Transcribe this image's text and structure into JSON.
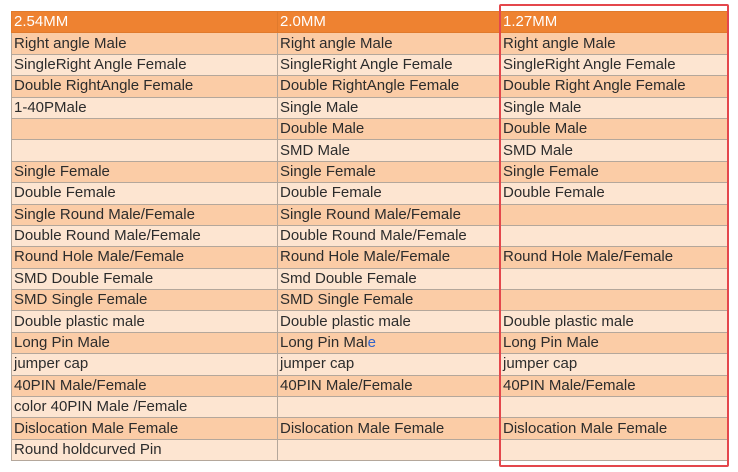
{
  "headers": [
    "2.54MM",
    "2.0MM",
    "1.27MM"
  ],
  "rows": [
    [
      "Right angle Male",
      "Right angle Male",
      "Right angle Male"
    ],
    [
      "SingleRight Angle Female",
      "SingleRight Angle Female",
      "SingleRight Angle Female"
    ],
    [
      "Double RightAngle Female",
      "Double RightAngle Female",
      "Double Right Angle Female"
    ],
    [
      "1-40PMale",
      "Single Male",
      "Single Male"
    ],
    [
      "",
      "Double Male",
      "Double Male"
    ],
    [
      "",
      "SMD Male",
      "SMD Male"
    ],
    [
      "Single Female",
      "Single Female",
      "Single Female"
    ],
    [
      "Double Female",
      "Double Female",
      "Double Female"
    ],
    [
      "Single Round Male/Female",
      "Single Round Male/Female",
      ""
    ],
    [
      "Double Round Male/Female",
      "Double Round Male/Female",
      ""
    ],
    [
      "Round Hole Male/Female",
      "Round Hole Male/Female",
      "Round Hole Male/Female"
    ],
    [
      "SMD Double Female",
      "Smd Double Female",
      ""
    ],
    [
      "SMD Single Female",
      "SMD Single Female",
      ""
    ],
    [
      "Double plastic male",
      "Double plastic male",
      "Double plastic male"
    ],
    [
      "Long Pin Male",
      "Long Pin Male",
      "Long Pin Male"
    ],
    [
      "jumper cap",
      "jumper cap",
      "jumper cap"
    ],
    [
      "40PIN Male/Female",
      "40PIN Male/Female",
      "40PIN Male/Female"
    ],
    [
      "color 40PIN Male /Female",
      "",
      ""
    ],
    [
      "Dislocation Male Female",
      "Dislocation Male Female",
      "Dislocation Male Female"
    ],
    [
      "Round holdcurved Pin",
      "",
      ""
    ]
  ],
  "colors": {
    "header_bg": "#ee8231",
    "row_dark": "#fbcca6",
    "row_light": "#fde5d1",
    "highlight_frame": "#e4474c"
  }
}
